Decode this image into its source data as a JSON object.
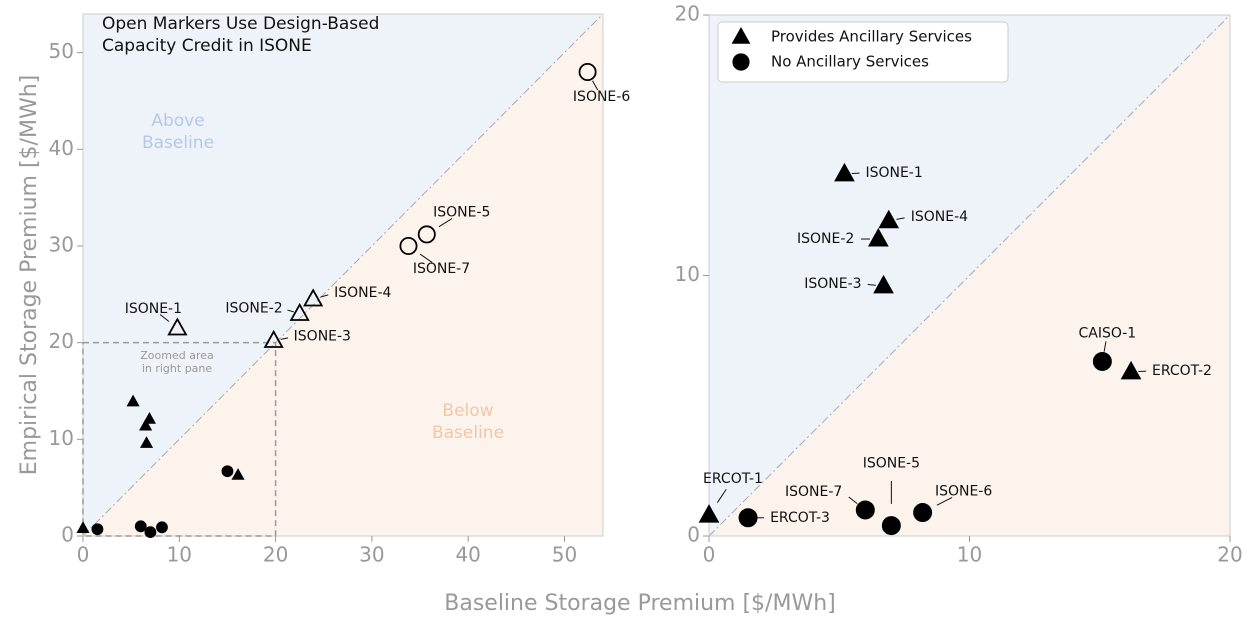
{
  "xlabel": "Baseline Storage Premium [$/MWh]",
  "ylabel": "Empirical Storage Premium [$/MWh]",
  "chart_data": [
    {
      "type": "scatter",
      "annotations": [
        "Open Markers Use Design-Based",
        "Capacity Credit in ISONE"
      ],
      "above_label": [
        "Above",
        "Baseline"
      ],
      "below_label": [
        "Below",
        "Baseline"
      ],
      "zoom_label": [
        "Zoomed area",
        "in right pane"
      ],
      "zoom_box": {
        "xlim": [
          0,
          20
        ],
        "ylim": [
          0,
          20
        ]
      },
      "xlim": [
        0,
        54
      ],
      "ylim": [
        0,
        54
      ],
      "xticks": [
        0,
        10,
        20,
        30,
        40,
        50
      ],
      "yticks": [
        0,
        10,
        20,
        30,
        40,
        50
      ],
      "series": [
        {
          "marker": "triangle",
          "filled": true,
          "color": "#000000",
          "x": [
            5.2,
            6.5,
            6.9,
            6.6,
            16.1,
            0
          ],
          "values": [
            13.9,
            11.4,
            12.1,
            9.6,
            6.3,
            0.8
          ]
        },
        {
          "marker": "circle",
          "filled": true,
          "color": "#000000",
          "x": [
            6,
            7,
            8.2,
            1.5,
            15
          ],
          "values": [
            1,
            0.4,
            0.9,
            0.7,
            6.7
          ]
        },
        {
          "marker": "triangle",
          "filled": false,
          "color": "#000000",
          "x": [
            9.8,
            22.5,
            19.8,
            23.9
          ],
          "values": [
            21.5,
            23,
            20.2,
            24.5
          ],
          "point_labels": [
            "ISONE-1",
            "ISONE-2",
            "ISONE-3",
            "ISONE-4"
          ]
        },
        {
          "marker": "circle",
          "filled": false,
          "color": "#000000",
          "x": [
            35.7,
            52.4,
            33.8
          ],
          "values": [
            31.2,
            48,
            30
          ],
          "point_labels": [
            "ISONE-5",
            "ISONE-6",
            "ISONE-7"
          ]
        }
      ]
    },
    {
      "type": "scatter",
      "xlim": [
        0,
        20
      ],
      "ylim": [
        0,
        20
      ],
      "xticks": [
        0,
        10,
        20
      ],
      "yticks": [
        0,
        10,
        20
      ],
      "legend": "upper left",
      "series": [
        {
          "name": "Provides Ancillary Services",
          "marker": "triangle",
          "filled": true,
          "color": "#000000",
          "x": [
            5.2,
            6.5,
            6.7,
            6.9,
            16.2,
            0
          ],
          "values": [
            13.9,
            11.4,
            9.6,
            12.1,
            6.3,
            0.8
          ],
          "point_labels": [
            "ISONE-1",
            "ISONE-2",
            "ISONE-3",
            "ISONE-4",
            "ERCOT-2",
            "ERCOT-1"
          ]
        },
        {
          "name": "No Ancillary Services",
          "marker": "circle",
          "filled": true,
          "color": "#000000",
          "x": [
            15.1,
            7,
            8.2,
            6,
            1.5
          ],
          "values": [
            6.7,
            0.4,
            0.9,
            1,
            0.7
          ],
          "point_labels": [
            "CAISO-1",
            "ISONE-5",
            "ISONE-6",
            "ISONE-7",
            "ERCOT-3"
          ]
        }
      ]
    }
  ]
}
